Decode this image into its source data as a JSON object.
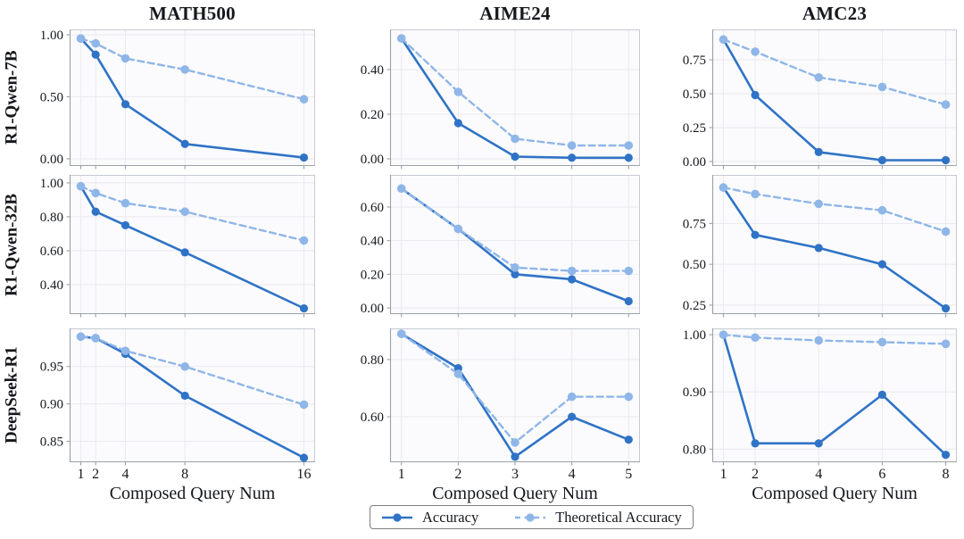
{
  "figure": {
    "column_titles": [
      "MATH500",
      "AIME24",
      "AMC23"
    ],
    "row_labels": [
      "R1-Qwen-7B",
      "R1-Qwen-32B",
      "DeepSeek-R1"
    ],
    "xlabel": "Composed Query Num",
    "legend": [
      {
        "label": "Accuracy",
        "style": "solid"
      },
      {
        "label": "Theoretical Accuracy",
        "style": "dashed"
      }
    ]
  },
  "colors": {
    "accuracy": "#2f73c6",
    "theoretical": "#8fb6e8",
    "grid": "#e9eaef",
    "panel_bg": "#fbfbfd",
    "spine": "#c6cad0",
    "spine_dark": "#9ba1a8",
    "text": "#15181c",
    "legend_border": "#7e7e7e"
  },
  "chart_data": [
    {
      "type": "line",
      "row": 0,
      "col": 0,
      "dataset": "MATH500",
      "model": "R1-Qwen-7B",
      "x": [
        1,
        2,
        4,
        8,
        16
      ],
      "xlim": [
        0.25,
        16.75
      ],
      "xticks": [
        1,
        2,
        4,
        8,
        16
      ],
      "xtick_labels": [
        "1",
        "2",
        "4",
        "8",
        "16"
      ],
      "show_xticklabels": false,
      "yticks": [
        0.0,
        0.5,
        1.0
      ],
      "ytick_labels": [
        "0.00",
        "0.50",
        "1.00"
      ],
      "ylim": [
        -0.058,
        1.043
      ],
      "grid": true,
      "series": [
        {
          "name": "Accuracy",
          "values": [
            0.97,
            0.84,
            0.44,
            0.12,
            0.01
          ]
        },
        {
          "name": "Theoretical Accuracy",
          "values": [
            0.97,
            0.93,
            0.81,
            0.72,
            0.48
          ]
        }
      ]
    },
    {
      "type": "line",
      "row": 0,
      "col": 1,
      "dataset": "AIME24",
      "model": "R1-Qwen-7B",
      "x": [
        1,
        2,
        3,
        4,
        5
      ],
      "xlim": [
        0.8,
        5.2
      ],
      "xticks": [
        1,
        2,
        3,
        4,
        5
      ],
      "xtick_labels": [
        "1",
        "2",
        "3",
        "4",
        "5"
      ],
      "show_xticklabels": false,
      "yticks": [
        0.0,
        0.2,
        0.4
      ],
      "ytick_labels": [
        "0.00",
        "0.20",
        "0.40"
      ],
      "ylim": [
        -0.032,
        0.58
      ],
      "grid": true,
      "series": [
        {
          "name": "Accuracy",
          "values": [
            0.54,
            0.16,
            0.01,
            0.005,
            0.005
          ]
        },
        {
          "name": "Theoretical Accuracy",
          "values": [
            0.54,
            0.3,
            0.09,
            0.06,
            0.06
          ]
        }
      ]
    },
    {
      "type": "line",
      "row": 0,
      "col": 2,
      "dataset": "AMC23",
      "model": "R1-Qwen-7B",
      "x": [
        1,
        2,
        4,
        6,
        8
      ],
      "xlim": [
        0.65,
        8.35
      ],
      "xticks": [
        1,
        2,
        4,
        6,
        8
      ],
      "xtick_labels": [
        "1",
        "2",
        "4",
        "6",
        "8"
      ],
      "show_xticklabels": false,
      "yticks": [
        0.0,
        0.25,
        0.5,
        0.75
      ],
      "ytick_labels": [
        "0.00",
        "0.25",
        "0.50",
        "0.75"
      ],
      "ylim": [
        -0.033,
        0.974
      ],
      "grid": true,
      "series": [
        {
          "name": "Accuracy",
          "values": [
            0.9,
            0.49,
            0.07,
            0.01,
            0.01
          ]
        },
        {
          "name": "Theoretical Accuracy",
          "values": [
            0.9,
            0.81,
            0.62,
            0.55,
            0.42
          ]
        }
      ]
    },
    {
      "type": "line",
      "row": 1,
      "col": 0,
      "dataset": "MATH500",
      "model": "R1-Qwen-32B",
      "x": [
        1,
        2,
        4,
        8,
        16
      ],
      "xlim": [
        0.25,
        16.75
      ],
      "xticks": [
        1,
        2,
        4,
        8,
        16
      ],
      "xtick_labels": [
        "1",
        "2",
        "4",
        "8",
        "16"
      ],
      "show_xticklabels": false,
      "yticks": [
        0.4,
        0.6,
        0.8,
        1.0
      ],
      "ytick_labels": [
        "0.40",
        "0.60",
        "0.80",
        "1.00"
      ],
      "ylim": [
        0.226,
        1.047
      ],
      "grid": true,
      "series": [
        {
          "name": "Accuracy",
          "values": [
            0.98,
            0.83,
            0.75,
            0.59,
            0.26
          ]
        },
        {
          "name": "Theoretical Accuracy",
          "values": [
            0.98,
            0.94,
            0.88,
            0.83,
            0.66
          ]
        }
      ]
    },
    {
      "type": "line",
      "row": 1,
      "col": 1,
      "dataset": "AIME24",
      "model": "R1-Qwen-32B",
      "x": [
        1,
        2,
        3,
        4,
        5
      ],
      "xlim": [
        0.8,
        5.2
      ],
      "xticks": [
        1,
        2,
        3,
        4,
        5
      ],
      "xtick_labels": [
        "1",
        "2",
        "3",
        "4",
        "5"
      ],
      "show_xticklabels": false,
      "yticks": [
        0.0,
        0.2,
        0.4,
        0.6
      ],
      "ytick_labels": [
        "0.00",
        "0.20",
        "0.40",
        "0.60"
      ],
      "ylim": [
        -0.037,
        0.791
      ],
      "grid": true,
      "series": [
        {
          "name": "Accuracy",
          "values": [
            0.71,
            0.47,
            0.2,
            0.17,
            0.04
          ]
        },
        {
          "name": "Theoretical Accuracy",
          "values": [
            0.71,
            0.47,
            0.24,
            0.22,
            0.22
          ]
        }
      ]
    },
    {
      "type": "line",
      "row": 1,
      "col": 2,
      "dataset": "AMC23",
      "model": "R1-Qwen-32B",
      "x": [
        1,
        2,
        4,
        6,
        8
      ],
      "xlim": [
        0.65,
        8.35
      ],
      "xticks": [
        1,
        2,
        4,
        6,
        8
      ],
      "xtick_labels": [
        "1",
        "2",
        "4",
        "6",
        "8"
      ],
      "show_xticklabels": false,
      "yticks": [
        0.25,
        0.5,
        0.75
      ],
      "ytick_labels": [
        "0.25",
        "0.50",
        "0.75"
      ],
      "ylim": [
        0.195,
        1.047
      ],
      "grid": true,
      "series": [
        {
          "name": "Accuracy",
          "values": [
            0.97,
            0.68,
            0.6,
            0.5,
            0.23
          ]
        },
        {
          "name": "Theoretical Accuracy",
          "values": [
            0.97,
            0.93,
            0.87,
            0.83,
            0.7
          ]
        }
      ]
    },
    {
      "type": "line",
      "row": 2,
      "col": 0,
      "dataset": "MATH500",
      "model": "DeepSeek-R1",
      "x": [
        1,
        2,
        4,
        8,
        16
      ],
      "xlim": [
        0.25,
        16.75
      ],
      "xticks": [
        1,
        2,
        4,
        8,
        16
      ],
      "xtick_labels": [
        "1",
        "2",
        "4",
        "8",
        "16"
      ],
      "show_xticklabels": true,
      "yticks": [
        0.85,
        0.9,
        0.95
      ],
      "ytick_labels": [
        "0.85",
        "0.90",
        "0.95"
      ],
      "ylim": [
        0.822,
        1.001
      ],
      "grid": true,
      "series": [
        {
          "name": "Accuracy",
          "values": [
            0.99,
            0.988,
            0.967,
            0.911,
            0.828
          ]
        },
        {
          "name": "Theoretical Accuracy",
          "values": [
            0.99,
            0.988,
            0.971,
            0.95,
            0.899
          ]
        }
      ]
    },
    {
      "type": "line",
      "row": 2,
      "col": 1,
      "dataset": "AIME24",
      "model": "DeepSeek-R1",
      "x": [
        1,
        2,
        3,
        4,
        5
      ],
      "xlim": [
        0.8,
        5.2
      ],
      "xticks": [
        1,
        2,
        3,
        4,
        5
      ],
      "xtick_labels": [
        "1",
        "2",
        "3",
        "4",
        "5"
      ],
      "show_xticklabels": true,
      "yticks": [
        0.6,
        0.8
      ],
      "ytick_labels": [
        "0.60",
        "0.80"
      ],
      "ylim": [
        0.441,
        0.909
      ],
      "grid": true,
      "series": [
        {
          "name": "Accuracy",
          "values": [
            0.89,
            0.77,
            0.46,
            0.6,
            0.52
          ]
        },
        {
          "name": "Theoretical Accuracy",
          "values": [
            0.89,
            0.75,
            0.51,
            0.67,
            0.67
          ]
        }
      ]
    },
    {
      "type": "line",
      "row": 2,
      "col": 2,
      "dataset": "AMC23",
      "model": "DeepSeek-R1",
      "x": [
        1,
        2,
        4,
        6,
        8
      ],
      "xlim": [
        0.65,
        8.35
      ],
      "xticks": [
        1,
        2,
        4,
        6,
        8
      ],
      "xtick_labels": [
        "1",
        "2",
        "4",
        "6",
        "8"
      ],
      "show_xticklabels": true,
      "yticks": [
        0.8,
        0.9,
        1.0
      ],
      "ytick_labels": [
        "0.80",
        "0.90",
        "1.00"
      ],
      "ylim": [
        0.777,
        1.011
      ],
      "grid": true,
      "series": [
        {
          "name": "Accuracy",
          "values": [
            1.0,
            0.81,
            0.81,
            0.895,
            0.79
          ]
        },
        {
          "name": "Theoretical Accuracy",
          "values": [
            1.0,
            0.995,
            0.99,
            0.987,
            0.984
          ]
        }
      ]
    }
  ]
}
